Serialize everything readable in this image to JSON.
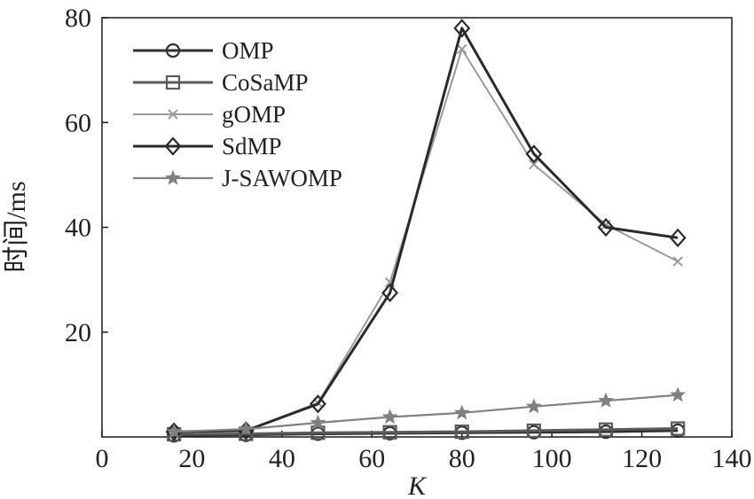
{
  "chart_data": {
    "type": "line",
    "xlabel": "K",
    "ylabel": "时间/ms",
    "xlim": [
      0,
      140
    ],
    "ylim": [
      0,
      80
    ],
    "xticks": [
      0,
      20,
      40,
      60,
      80,
      100,
      120,
      140
    ],
    "yticks": [
      20,
      40,
      60,
      80
    ],
    "grid": false,
    "legend_position": "top-left",
    "x": [
      16,
      32,
      48,
      64,
      80,
      96,
      112,
      128
    ],
    "series": [
      {
        "name": "OMP",
        "marker": "circle",
        "color": "#303030",
        "values": [
          0.3,
          0.4,
          0.6,
          0.7,
          0.8,
          0.9,
          1.0,
          1.2
        ]
      },
      {
        "name": "CoSaMP",
        "marker": "square",
        "color": "#5a5a5a",
        "values": [
          0.5,
          0.6,
          0.8,
          0.9,
          1.0,
          1.2,
          1.4,
          1.6
        ]
      },
      {
        "name": "gOMP",
        "marker": "x",
        "color": "#9a9a9a",
        "values": [
          1.0,
          1.2,
          6.5,
          29.5,
          74.0,
          52.0,
          40.5,
          33.5
        ]
      },
      {
        "name": "SdMP",
        "marker": "diamond",
        "color": "#2a2a2a",
        "values": [
          1.0,
          1.2,
          6.3,
          27.5,
          78.0,
          54.0,
          40.0,
          38.0
        ]
      },
      {
        "name": "J-SAWOMP",
        "marker": "star",
        "color": "#808080",
        "values": [
          1.0,
          1.5,
          2.7,
          3.8,
          4.6,
          5.8,
          6.9,
          8.0
        ]
      }
    ]
  }
}
